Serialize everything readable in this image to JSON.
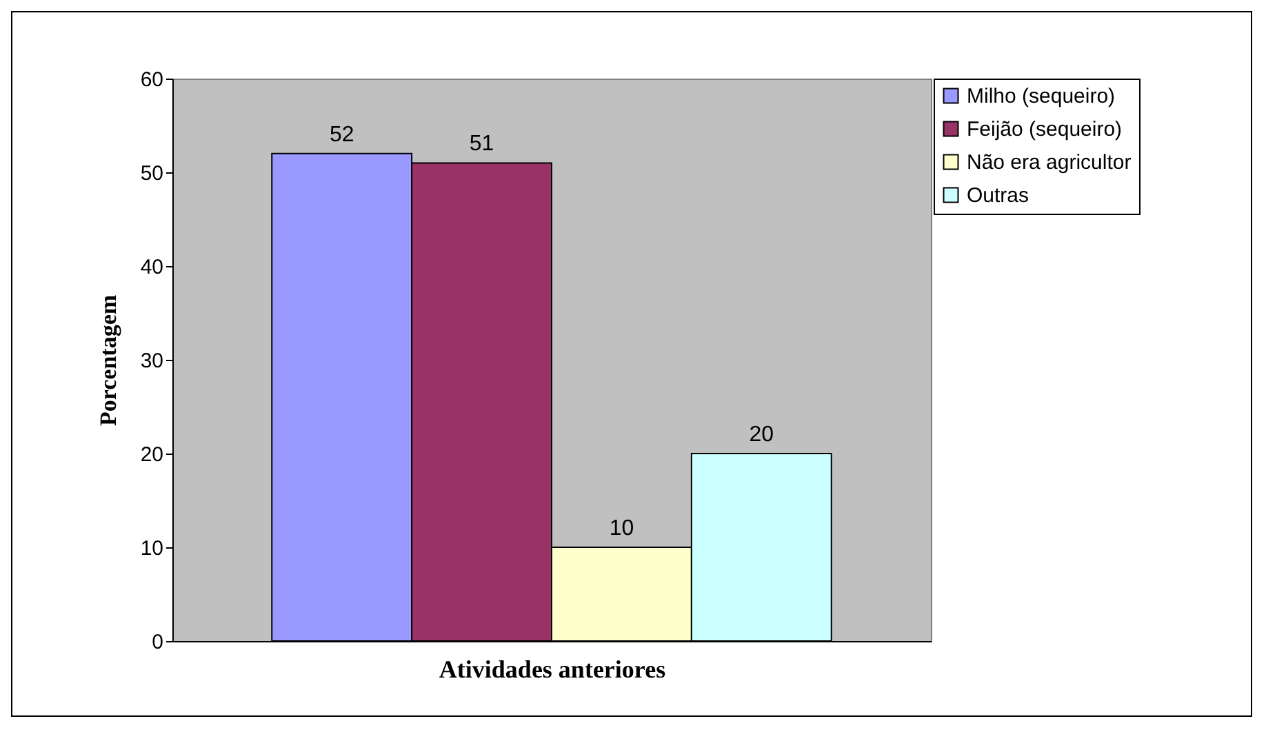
{
  "chart_data": {
    "type": "bar",
    "xlabel": "Atividades anteriores",
    "ylabel": "Porcentagem",
    "categories": [
      null
    ],
    "series": [
      {
        "name": "Milho (sequeiro)",
        "color": "#9999ff",
        "values": [
          52
        ]
      },
      {
        "name": "Feijão (sequeiro)",
        "color": "#993366",
        "values": [
          51
        ]
      },
      {
        "name": "Não era agricultor",
        "color": "#ffffcc",
        "values": [
          10
        ]
      },
      {
        "name": "Outras",
        "color": "#ccffff",
        "values": [
          20
        ]
      }
    ],
    "ylim": [
      0,
      60
    ],
    "yticks": [
      0,
      10,
      20,
      30,
      40,
      50,
      60
    ],
    "data_labels": true,
    "legend": "right"
  }
}
